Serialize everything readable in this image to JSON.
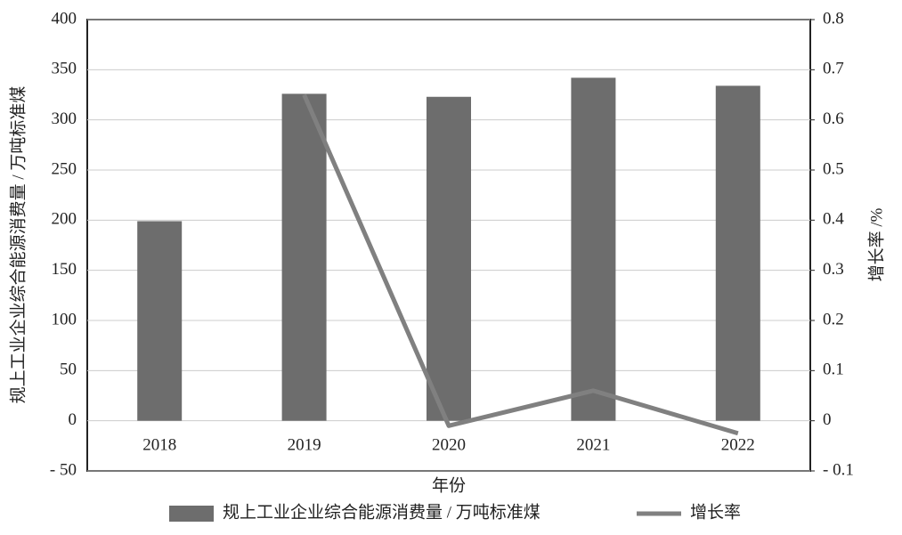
{
  "chart_data": {
    "type": "bar-line",
    "categories": [
      "2018",
      "2019",
      "2020",
      "2021",
      "2022"
    ],
    "series": [
      {
        "name": "规上工业企业综合能源消费量 / 万吨标准煤",
        "type": "bar",
        "color": "#6d6d6d",
        "values": [
          199,
          326,
          323,
          342,
          334
        ]
      },
      {
        "name": "增长率",
        "type": "line",
        "axis": "y2",
        "color": "#808080",
        "values": [
          null,
          0.65,
          -0.01,
          0.06,
          -0.025
        ]
      }
    ],
    "x_label": "年份",
    "y_label": "规上工业企业综合能源消费量 / 万吨标准煤",
    "y2_label": "增长率 /%",
    "ylim": [
      -50,
      400
    ],
    "yticks": [
      {
        "value": -50,
        "label": "- 50"
      },
      0,
      50,
      100,
      150,
      200,
      250,
      300,
      350,
      400
    ],
    "y2lim": [
      -0.1,
      0.8
    ],
    "y2ticks": [
      {
        "value": -0.1,
        "label": "- 0.1"
      },
      0,
      0.1,
      0.2,
      0.3,
      0.4,
      0.5,
      0.6,
      0.7,
      0.8
    ],
    "legend": "bottom"
  }
}
